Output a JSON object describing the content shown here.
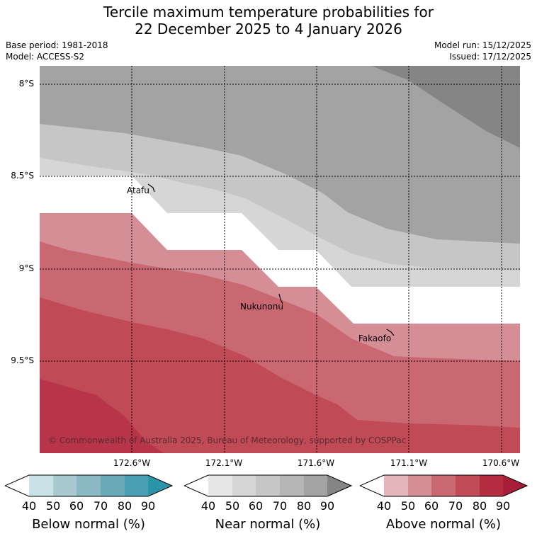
{
  "title": {
    "line1": "Tercile maximum temperature probabilities for",
    "line2": "22 December 2025 to 4 January 2026"
  },
  "meta": {
    "base_period": "Base period: 1981-2018",
    "model": "Model: ACCESS-S2",
    "model_run": "Model run: 15/12/2025",
    "issued": "Issued: 17/12/2025"
  },
  "axes": {
    "lat_labels": [
      "8°S",
      "8.5°S",
      "9°S",
      "9.5°S"
    ],
    "lon_labels": [
      "172.6°W",
      "172.1°W",
      "171.6°W",
      "171.1°W",
      "170.6°W"
    ]
  },
  "places": {
    "atafu": "Atafu",
    "nukunonu": "Nukunonu",
    "fakaofo": "Fakaofo"
  },
  "copyright": "© Commonwealth of Australia 2025, Bureau of Meteorology, supported by COSPPac",
  "colorbars": {
    "ticks": [
      "40",
      "50",
      "60",
      "70",
      "80",
      "90"
    ],
    "below": {
      "label": "Below normal (%)",
      "colors": [
        "#c9e2e8",
        "#a9c9d0",
        "#8ab9c4",
        "#6aa9b8",
        "#4aa0b2",
        "#2a95a8"
      ]
    },
    "near": {
      "label": "Near normal (%)",
      "colors": [
        "#e6e6e6",
        "#d6d6d6",
        "#c6c6c6",
        "#b6b6b6",
        "#a3a3a3",
        "#858585"
      ]
    },
    "above": {
      "label": "Above normal (%)",
      "colors": [
        "#e3b6bc",
        "#d68e96",
        "#c96870",
        "#c04a56",
        "#b52d41",
        "#a81e38"
      ]
    }
  }
}
